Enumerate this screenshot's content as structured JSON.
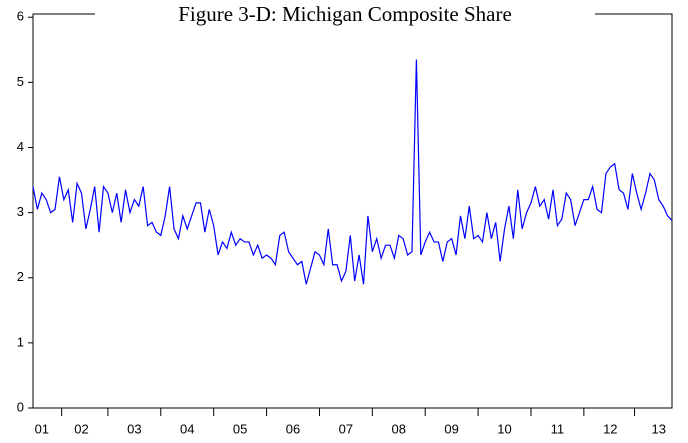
{
  "chart_data": {
    "type": "line",
    "title": "Figure 3-D: Michigan Composite Share",
    "categories": [
      null,
      null,
      "01",
      null,
      null,
      null,
      null,
      null,
      null,
      null,
      null,
      "02",
      null,
      null,
      null,
      null,
      null,
      null,
      null,
      null,
      null,
      null,
      null,
      "03",
      null,
      null,
      null,
      null,
      null,
      null,
      null,
      null,
      null,
      null,
      null,
      "04",
      null,
      null,
      null,
      null,
      null,
      null,
      null,
      null,
      null,
      null,
      null,
      "05",
      null,
      null,
      null,
      null,
      null,
      null,
      null,
      null,
      null,
      null,
      null,
      "06",
      null,
      null,
      null,
      null,
      null,
      null,
      null,
      null,
      null,
      null,
      null,
      "07",
      null,
      null,
      null,
      null,
      null,
      null,
      null,
      null,
      null,
      null,
      null,
      "08",
      null,
      null,
      null,
      null,
      null,
      null,
      null,
      null,
      null,
      null,
      null,
      "09",
      null,
      null,
      null,
      null,
      null,
      null,
      null,
      null,
      null,
      null,
      null,
      "10",
      null,
      null,
      null,
      null,
      null,
      null,
      null,
      null,
      null,
      null,
      null,
      "11",
      null,
      null,
      null,
      null,
      null,
      null,
      null,
      null,
      null,
      null,
      null,
      "12",
      null,
      null,
      null,
      null,
      null,
      null,
      null,
      null,
      null,
      null,
      "13",
      null,
      null,
      null
    ],
    "series": [
      {
        "color": "#0000ff",
        "values": [
          3.4,
          3.05,
          3.3,
          3.2,
          3.0,
          3.05,
          3.55,
          3.2,
          3.35,
          2.85,
          3.45,
          3.3,
          2.75,
          3.05,
          3.4,
          2.7,
          3.4,
          3.3,
          3.0,
          3.3,
          2.85,
          3.35,
          3.0,
          3.2,
          3.1,
          3.4,
          2.8,
          2.85,
          2.7,
          2.65,
          2.95,
          3.4,
          2.75,
          2.6,
          2.95,
          2.75,
          2.95,
          3.15,
          3.15,
          2.7,
          3.05,
          2.8,
          2.35,
          2.55,
          2.45,
          2.7,
          2.5,
          2.6,
          2.55,
          2.55,
          2.35,
          2.5,
          2.3,
          2.35,
          2.3,
          2.2,
          2.65,
          2.7,
          2.4,
          2.3,
          2.2,
          2.25,
          1.9,
          2.15,
          2.4,
          2.35,
          2.2,
          2.75,
          2.2,
          2.2,
          1.95,
          2.1,
          2.65,
          1.95,
          2.35,
          1.9,
          2.95,
          2.4,
          2.6,
          2.3,
          2.5,
          2.5,
          2.3,
          2.65,
          2.6,
          2.35,
          2.4,
          5.35,
          2.35,
          2.55,
          2.7,
          2.55,
          2.55,
          2.25,
          2.55,
          2.6,
          2.35,
          2.95,
          2.6,
          3.1,
          2.6,
          2.65,
          2.55,
          3.0,
          2.6,
          2.85,
          2.25,
          2.75,
          3.1,
          2.6,
          3.35,
          2.75,
          3.0,
          3.15,
          3.4,
          3.1,
          3.2,
          2.9,
          3.35,
          2.8,
          2.9,
          3.3,
          3.2,
          2.8,
          3.0,
          3.2,
          3.2,
          3.4,
          3.05,
          3.0,
          3.6,
          3.7,
          3.75,
          3.35,
          3.3,
          3.05,
          3.6,
          3.3,
          3.05,
          3.3,
          3.6,
          3.5,
          3.2,
          3.1,
          2.95,
          2.88
        ]
      }
    ],
    "ylim": [
      0,
      6.05
    ],
    "yticks": [
      0,
      1,
      2,
      3,
      4,
      5,
      6
    ]
  }
}
